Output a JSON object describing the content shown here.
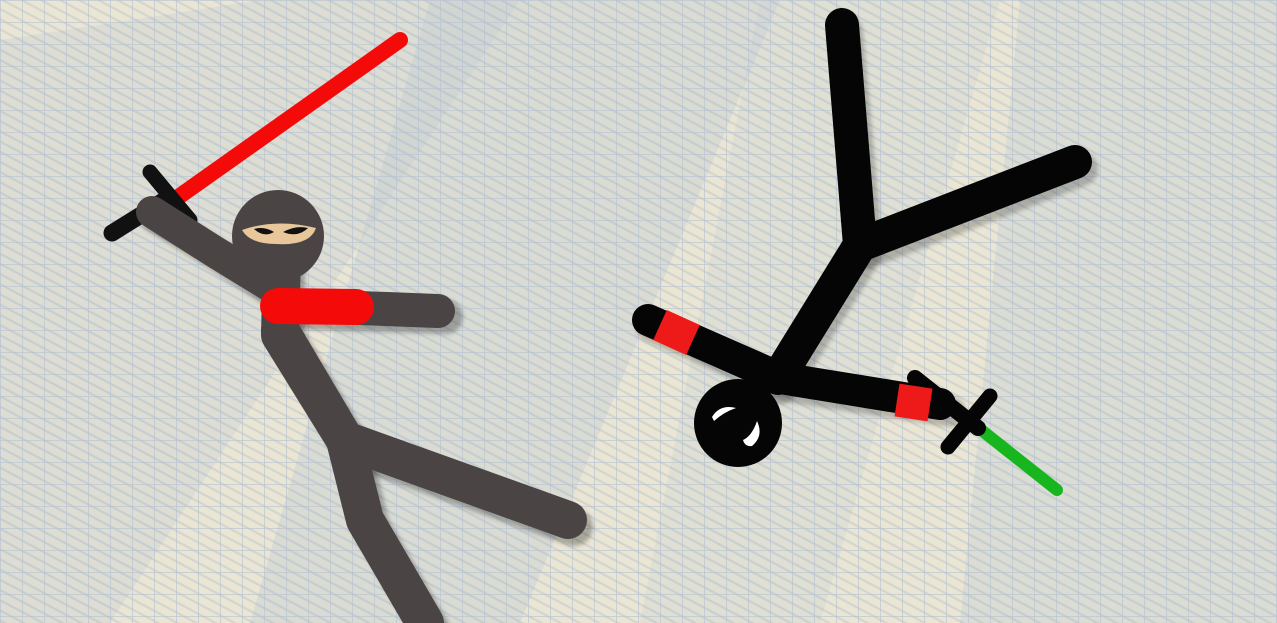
{
  "scene": {
    "background": {
      "paper_color": "#ebe6d3",
      "grid_line_color": "#b7c3d2",
      "shade_color": "#a6bad5"
    },
    "characters": [
      {
        "id": "gray-ninja",
        "body_color": "#4a4544",
        "band_color": "#f50a0a",
        "eye_band_color": "#e8c79b",
        "weapon": {
          "type": "sword",
          "blade_color": "#f50a0a",
          "hilt_color": "#111111"
        }
      },
      {
        "id": "black-stickman",
        "body_color": "#050505",
        "band_color": "#ee1a1a",
        "eye_color": "#ffffff",
        "weapon": {
          "type": "sword",
          "blade_color": "#17b51e",
          "hilt_color": "#050505"
        }
      }
    ]
  }
}
